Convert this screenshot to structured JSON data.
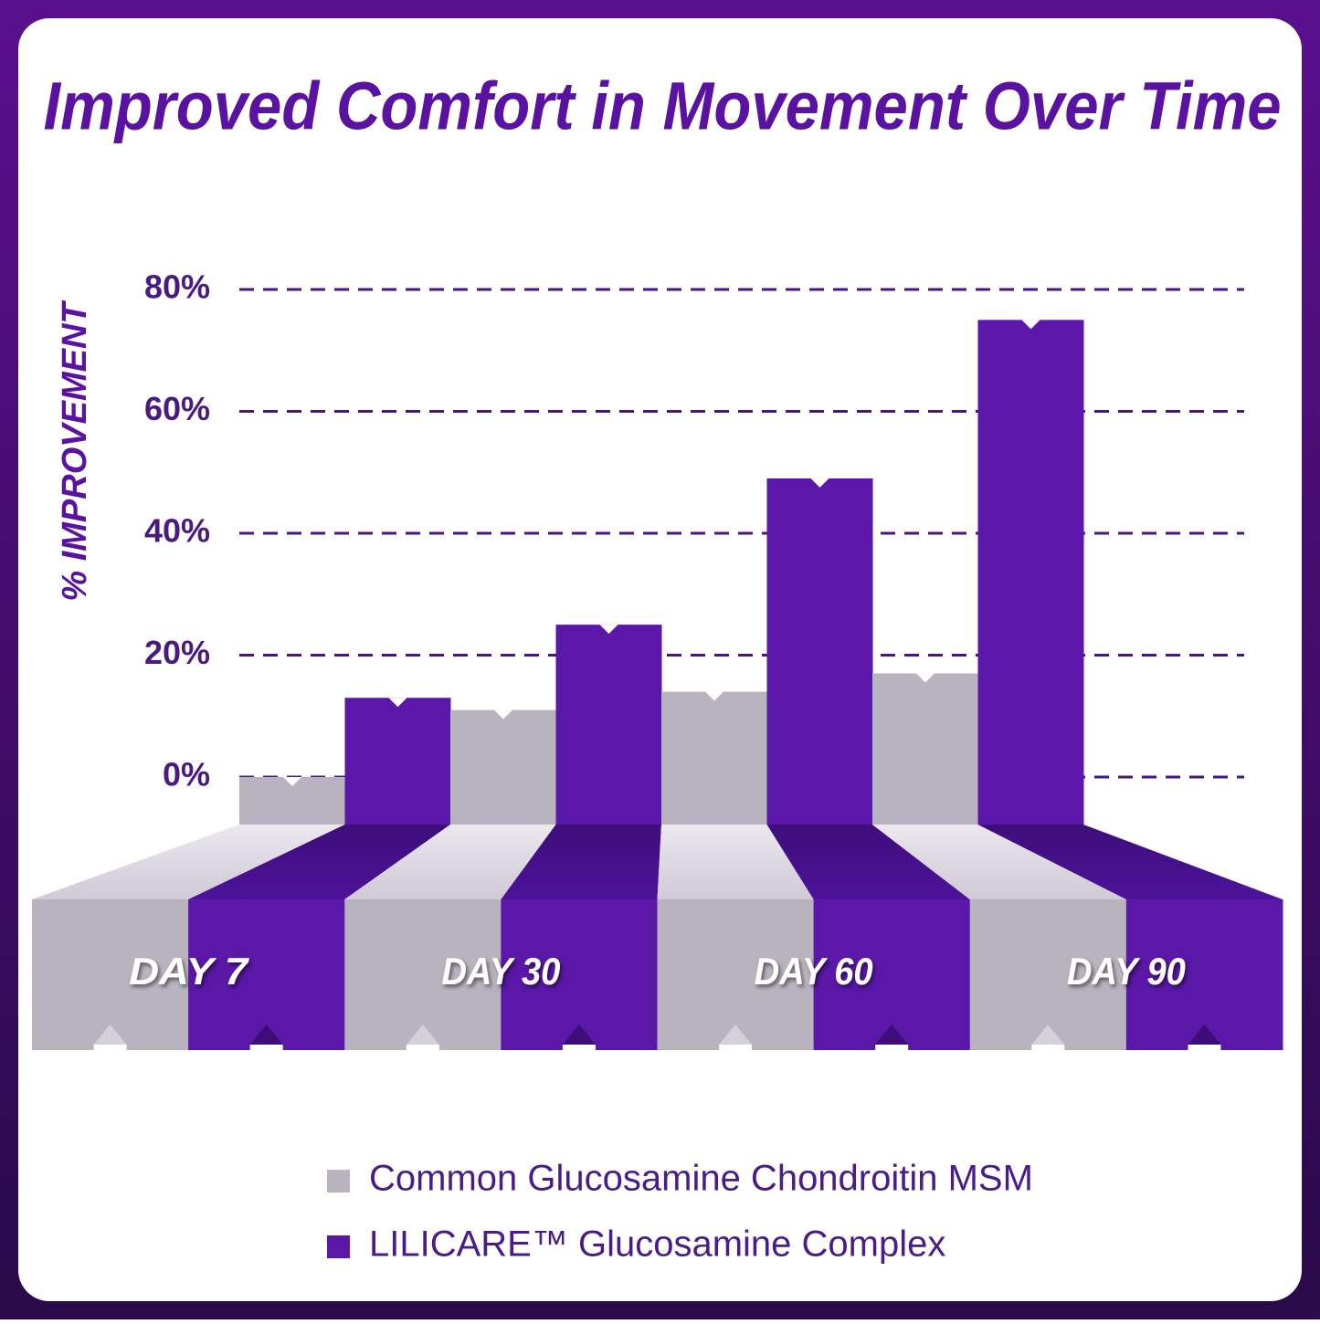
{
  "chart_data": {
    "type": "bar",
    "title": "Improved Comfort in Movement Over Time",
    "y_label": "% IMPROVEMENT",
    "categories": [
      "DAY 7",
      "DAY 30",
      "DAY 60",
      "DAY 90"
    ],
    "series": [
      {
        "name": "Common Glucosamine Chondroitin MSM",
        "color": "#b8b3bf",
        "values": [
          0,
          11,
          14,
          17
        ]
      },
      {
        "name": "LILICARE™ Glucosamine Complex",
        "color": "#5a17a8",
        "values": [
          13,
          25,
          49,
          75
        ]
      }
    ],
    "ylim": [
      0,
      80
    ],
    "yticks": [
      {
        "value": 0,
        "label": "0%"
      },
      {
        "value": 20,
        "label": "20%"
      },
      {
        "value": 40,
        "label": "40%"
      },
      {
        "value": 60,
        "label": "60%"
      },
      {
        "value": 80,
        "label": "80%"
      }
    ],
    "grid": true
  }
}
